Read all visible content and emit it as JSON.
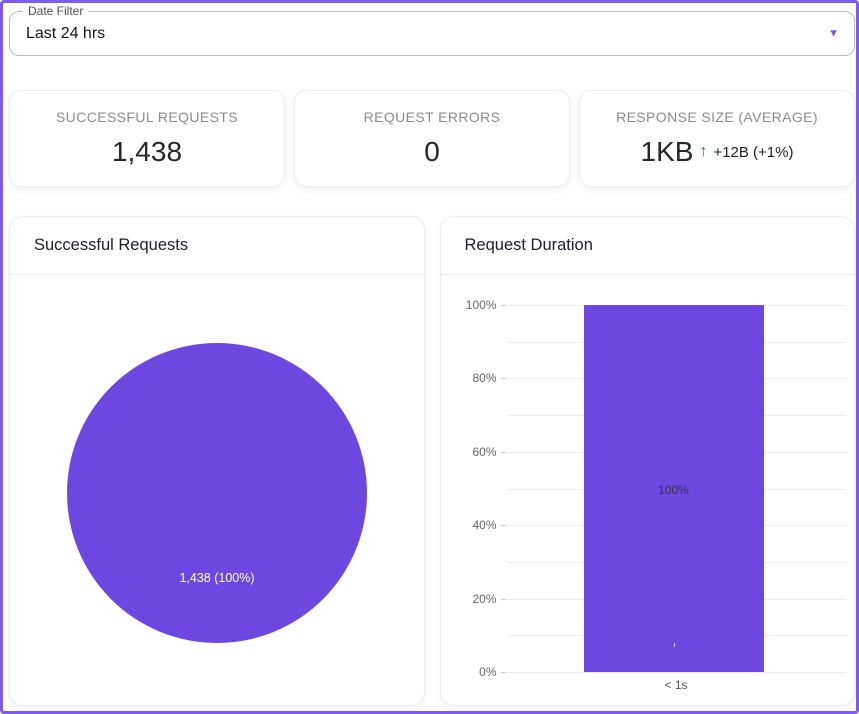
{
  "theme": {
    "accent": "#6C48E0",
    "page_border": "#7E5BEF",
    "positive": "#2E7D32"
  },
  "date_filter": {
    "label": "Date Filter",
    "value": "Last 24 hrs",
    "dropdown_icon": "▼"
  },
  "stats": [
    {
      "label": "SUCCESSFUL REQUESTS",
      "value": "1,438"
    },
    {
      "label": "REQUEST ERRORS",
      "value": "0"
    },
    {
      "label": "RESPONSE SIZE (AVERAGE)",
      "value": "1KB",
      "trend_icon": "↑",
      "delta": "+12B (+1%)"
    }
  ],
  "chart_data": [
    {
      "type": "pie",
      "title": "Successful Requests",
      "series": [
        {
          "name": "Successful Requests",
          "value": 1438,
          "percent": 100,
          "label": "1,438 (100%)",
          "color": "#6C48E0"
        }
      ],
      "legend": false
    },
    {
      "type": "bar",
      "title": "Request Duration",
      "categories": [
        "< 1s"
      ],
      "values": [
        100
      ],
      "value_labels": [
        "100%"
      ],
      "ylim": [
        0,
        100
      ],
      "yticks": [
        "0%",
        "20%",
        "40%",
        "60%",
        "80%",
        "100%"
      ],
      "grid": true,
      "bar_color": "#6C48E0"
    }
  ]
}
